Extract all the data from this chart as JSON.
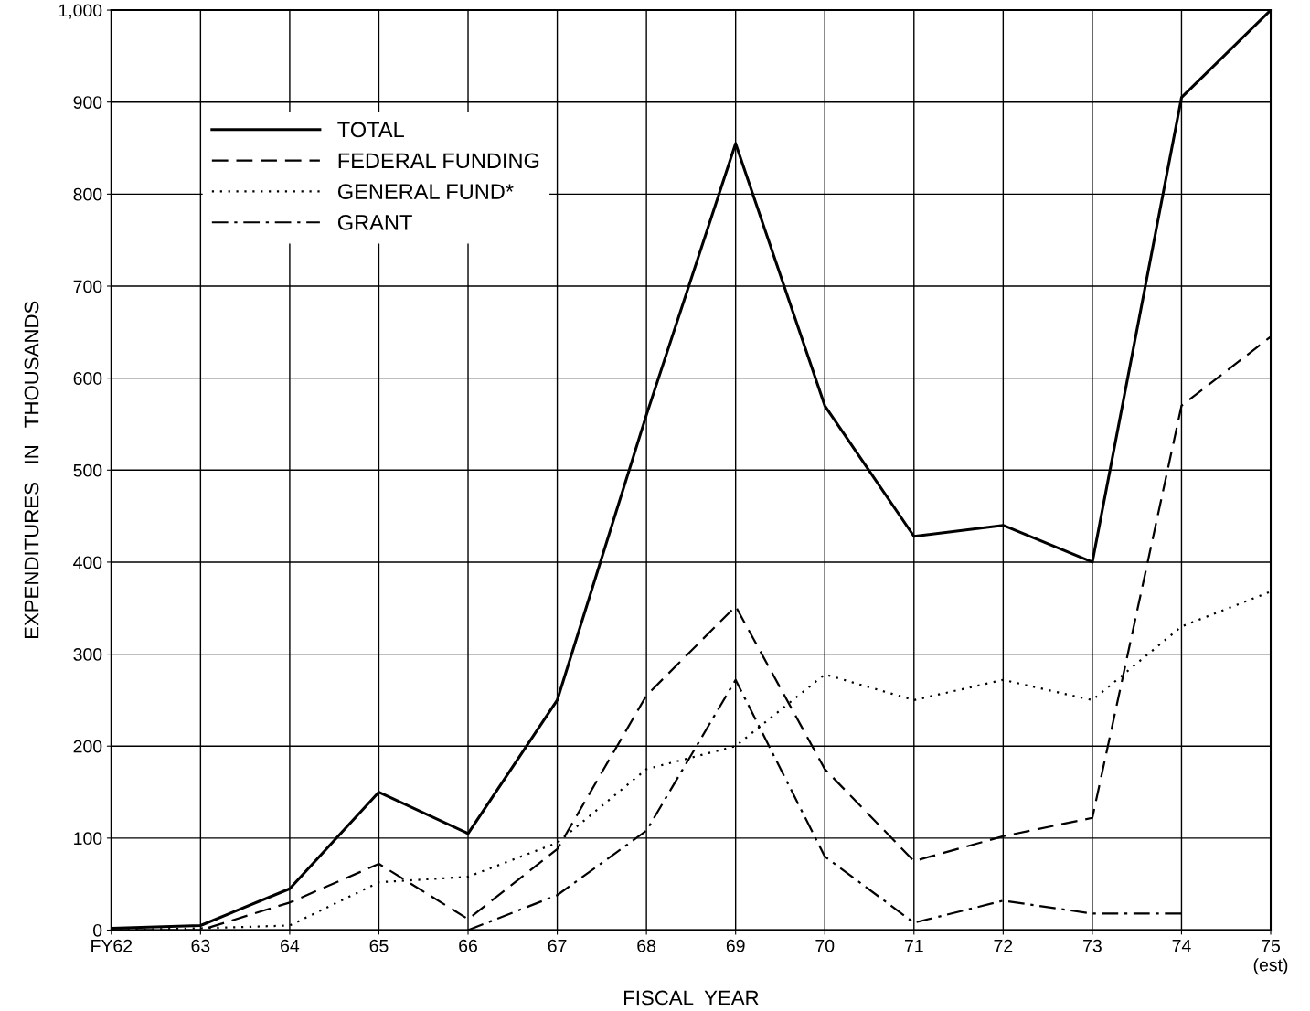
{
  "chart_data": {
    "type": "line",
    "xlabel": "FISCAL  YEAR",
    "ylabel": "EXPENDITURES   IN   THOUSANDS",
    "categories": [
      "FY62",
      "63",
      "64",
      "65",
      "66",
      "67",
      "68",
      "69",
      "70",
      "71",
      "72",
      "73",
      "74",
      "75\n(est)"
    ],
    "ylim": [
      0,
      1000
    ],
    "yticks": [
      0,
      100,
      200,
      300,
      400,
      500,
      600,
      700,
      800,
      900,
      {
        "value": 1000,
        "label": "1,000"
      }
    ],
    "grid": true,
    "legend": "top left",
    "marker": "none",
    "series": [
      {
        "name": "TOTAL",
        "color": "#000000",
        "line_style": "solid",
        "values": [
          2,
          5,
          45,
          150,
          105,
          250,
          560,
          855,
          570,
          428,
          440,
          400,
          905,
          1000
        ]
      },
      {
        "name": "FEDERAL FUNDING",
        "color": "#000000",
        "line_style": "dashed",
        "values": [
          0,
          0,
          30,
          72,
          12,
          88,
          255,
          352,
          175,
          75,
          102,
          122,
          570,
          645
        ]
      },
      {
        "name": "GENERAL FUND*",
        "color": "#000000",
        "line_style": "dotted",
        "values": [
          0,
          2,
          5,
          52,
          58,
          95,
          175,
          200,
          278,
          250,
          272,
          250,
          330,
          368
        ]
      },
      {
        "name": "GRANT",
        "color": "#000000",
        "line_style": "dashdot",
        "values": [
          null,
          null,
          null,
          null,
          0,
          38,
          108,
          272,
          80,
          8,
          32,
          18,
          18,
          null
        ]
      }
    ]
  }
}
